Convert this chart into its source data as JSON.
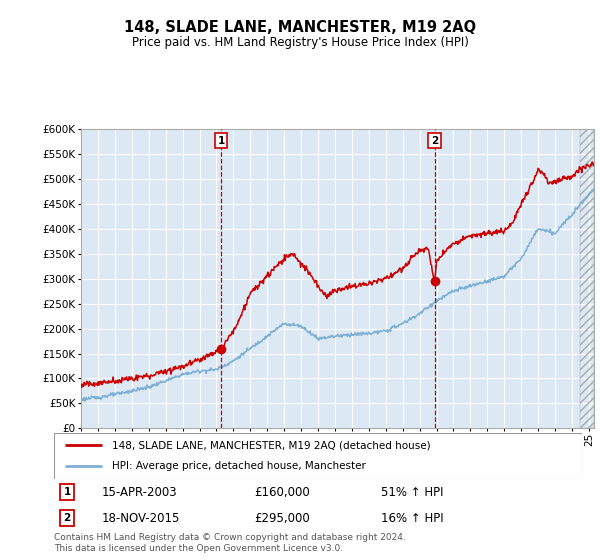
{
  "title": "148, SLADE LANE, MANCHESTER, M19 2AQ",
  "subtitle": "Price paid vs. HM Land Registry's House Price Index (HPI)",
  "ylim": [
    0,
    600000
  ],
  "yticks": [
    0,
    50000,
    100000,
    150000,
    200000,
    250000,
    300000,
    350000,
    400000,
    450000,
    500000,
    550000,
    600000
  ],
  "xlim_start": 1995.0,
  "xlim_end": 2025.3,
  "sale1_x": 2003.28,
  "sale1_y": 160000,
  "sale2_x": 2015.88,
  "sale2_y": 295000,
  "line1_color": "#cc0000",
  "line2_color": "#7eb0d4",
  "grid_color": "#cccccc",
  "bg_color": "#ffffff",
  "chart_bg": "#dce9f5",
  "legend_line1": "148, SLADE LANE, MANCHESTER, M19 2AQ (detached house)",
  "legend_line2": "HPI: Average price, detached house, Manchester",
  "annotation1_date": "15-APR-2003",
  "annotation1_price": "£160,000",
  "annotation1_hpi": "51% ↑ HPI",
  "annotation2_date": "18-NOV-2015",
  "annotation2_price": "£295,000",
  "annotation2_hpi": "16% ↑ HPI",
  "footer": "Contains HM Land Registry data © Crown copyright and database right 2024.\nThis data is licensed under the Open Government Licence v3.0."
}
